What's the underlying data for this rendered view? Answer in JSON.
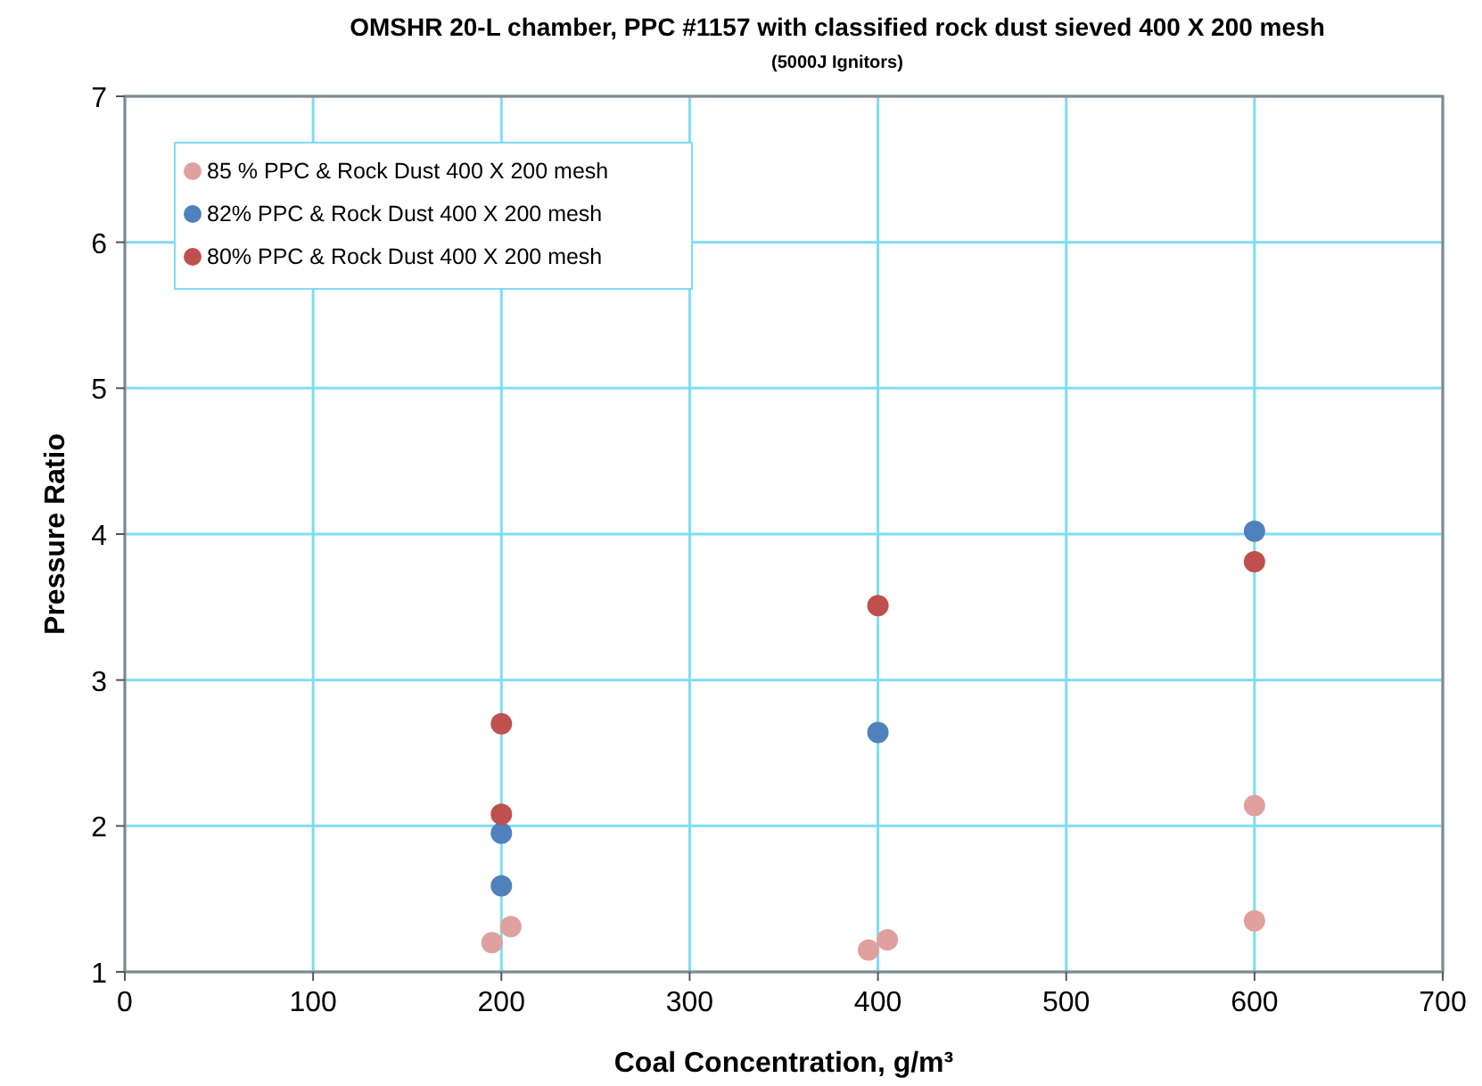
{
  "chart_data": {
    "type": "scatter",
    "title": "OMSHR 20-L chamber, PPC #1157 with classified  rock dust sieved 400 X 200 mesh",
    "subtitle": "(5000J Ignitors)",
    "xlabel": "Coal Concentration,  g/m³",
    "ylabel": "Pressure Ratio",
    "xlim": [
      0,
      700
    ],
    "xticks": [
      0,
      100,
      200,
      300,
      400,
      500,
      600,
      700
    ],
    "ylim": [
      1,
      7
    ],
    "yticks": [
      1,
      2,
      3,
      4,
      5,
      6,
      7
    ],
    "grid": true,
    "legend": "top left",
    "marker": "circle",
    "series": [
      {
        "name": "85 % PPC & Rock Dust 400 X 200 mesh",
        "color": "#e0a09e",
        "x": [
          195,
          205,
          395,
          405,
          600,
          600
        ],
        "values": [
          1.2,
          1.31,
          1.15,
          1.22,
          2.14,
          1.35
        ]
      },
      {
        "name": "82% PPC & Rock Dust 400 X 200 mesh",
        "color": "#4f81bd",
        "x": [
          200,
          200,
          400,
          600
        ],
        "values": [
          1.95,
          1.59,
          2.64,
          4.02
        ]
      },
      {
        "name": "80% PPC & Rock Dust 400 X 200 mesh",
        "color": "#c0504d",
        "x": [
          200,
          200,
          400,
          600
        ],
        "values": [
          2.7,
          2.08,
          3.51,
          3.81
        ]
      }
    ]
  }
}
